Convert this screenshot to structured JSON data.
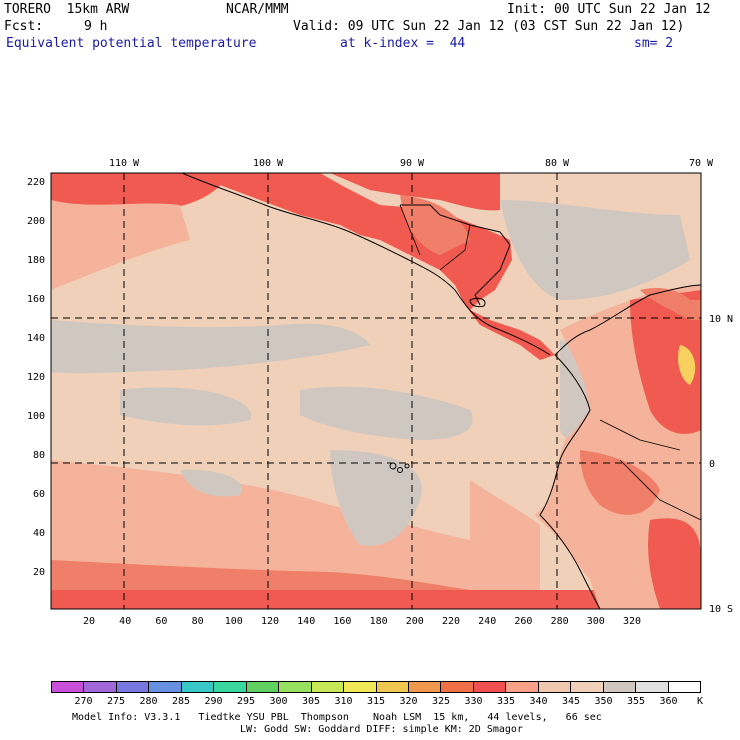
{
  "header": {
    "model": "TORERO  15km ARW",
    "institution": "NCAR/MMM",
    "init": "Init: 00 UTC Sun 22 Jan 12",
    "fcst_label": "Fcst:",
    "fcst_value": "9 h",
    "valid": "Valid: 09 UTC Sun 22 Jan 12 (03 CST Sun 22 Jan 12)",
    "field": "Equivalent potential temperature",
    "level": "at k-index =  44",
    "smoothing": "sm= 2"
  },
  "map": {
    "top_ticks": [
      "110 W",
      "100 W",
      "90 W",
      "80 W",
      "70 W"
    ],
    "right_ticks": [
      "10 N",
      "0",
      "10 S"
    ],
    "left_ticks": [
      "220",
      "200",
      "180",
      "160",
      "140",
      "120",
      "100",
      "80",
      "60",
      "40",
      "20"
    ],
    "bottom_ticks": [
      "20",
      "40",
      "60",
      "80",
      "100",
      "120",
      "140",
      "160",
      "180",
      "200",
      "220",
      "240",
      "260",
      "280",
      "300",
      "320"
    ]
  },
  "colorbar": {
    "colors": [
      "#c850d8",
      "#a068d8",
      "#7878e0",
      "#6890e0",
      "#38c8c8",
      "#38d8a0",
      "#60d060",
      "#98e060",
      "#c8e858",
      "#f0e858",
      "#f0c850",
      "#f09850",
      "#f07048",
      "#f05050",
      "#f8a088",
      "#f0c8b0",
      "#f0d0b8",
      "#d0c8c0",
      "#e0e0e0",
      "#ffffff"
    ],
    "labels": [
      "270",
      "275",
      "280",
      "285",
      "290",
      "295",
      "300",
      "305",
      "310",
      "315",
      "320",
      "325",
      "330",
      "335",
      "340",
      "345",
      "350",
      "355",
      "360"
    ],
    "unit": "K"
  },
  "footer": {
    "line1": "Model Info: V3.3.1   Tiedtke YSU PBL  Thompson    Noah LSM  15 km,   44 levels,   66 sec",
    "line2": "LW: Godd SW: Goddard DIFF: simple KM: 2D Smagor"
  }
}
